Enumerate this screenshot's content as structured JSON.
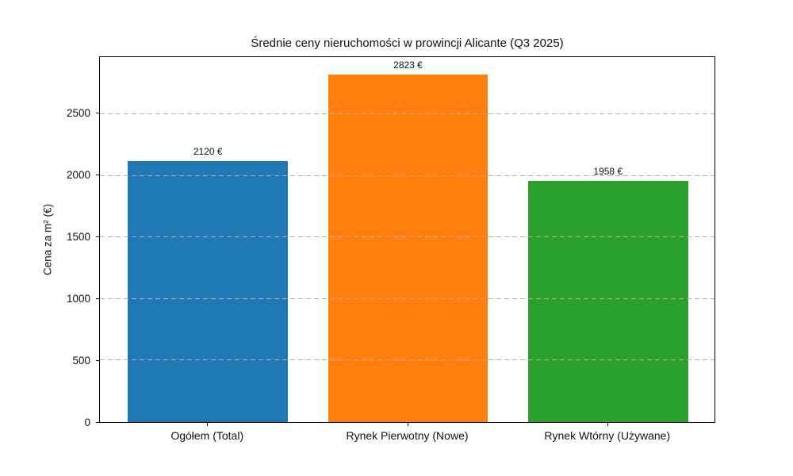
{
  "chart_data": {
    "type": "bar",
    "title": "Średnie ceny nieruchomości w prowincji Alicante (Q3 2025)",
    "categories": [
      "Ogółem (Total)",
      "Rynek Pierwotny (Nowe)",
      "Rynek Wtórny (Używane)"
    ],
    "values": [
      2120,
      2823,
      1958
    ],
    "value_labels": [
      "2120 €",
      "2823 €",
      "1958 €"
    ],
    "bar_colors": [
      "#1f77b4",
      "#ff7f0e",
      "#2ca02c"
    ],
    "xlabel": "",
    "ylabel": "Cena za m² (€)",
    "ylim": [
      0,
      2964
    ],
    "yticks": [
      0,
      500,
      1000,
      1500,
      2000,
      2500
    ],
    "ytick_labels": [
      "0",
      "500",
      "1000",
      "1500",
      "2000",
      "2500"
    ],
    "grid": "horizontal dashed",
    "gridline_color": "#b0b0b0",
    "legend": "none",
    "background_color": "#ffffff",
    "spine_color": "#000000"
  }
}
